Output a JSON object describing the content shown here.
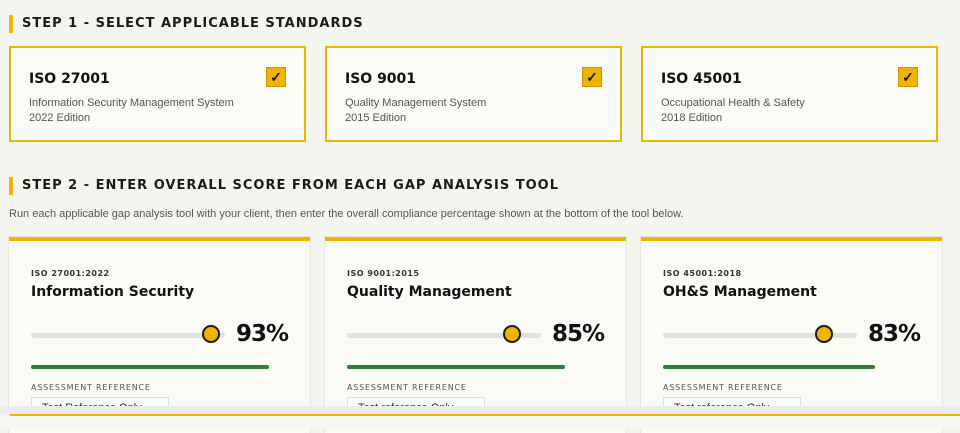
{
  "step1": {
    "title": "STEP 1 - SELECT APPLICABLE STANDARDS"
  },
  "standards": [
    {
      "code": "ISO 27001",
      "name": "Information Security Management System",
      "edition": "2022 Edition",
      "checked": true
    },
    {
      "code": "ISO 9001",
      "name": "Quality Management System",
      "edition": "2015 Edition",
      "checked": true
    },
    {
      "code": "ISO 45001",
      "name": "Occupational Health & Safety",
      "edition": "2018 Edition",
      "checked": true
    }
  ],
  "check_glyph": "✓",
  "step2": {
    "title": "STEP 2 - ENTER OVERALL SCORE FROM EACH GAP ANALYSIS TOOL",
    "description": "Run each applicable gap analysis tool with your client, then enter the overall compliance percentage shown at the bottom of the tool below."
  },
  "scores": [
    {
      "tag": "ISO 27001:2022",
      "title": "Information Security",
      "value": 93,
      "value_label": "93%",
      "ref_label": "ASSESSMENT REFERENCE",
      "ref_value": "Test Reference Only"
    },
    {
      "tag": "ISO 9001:2015",
      "title": "Quality Management",
      "value": 85,
      "value_label": "85%",
      "ref_label": "ASSESSMENT REFERENCE",
      "ref_value": "Test reference Only"
    },
    {
      "tag": "ISO 45001:2018",
      "title": "OH&S Management",
      "value": 83,
      "value_label": "83%",
      "ref_label": "ASSESSMENT REFERENCE",
      "ref_value": "Test reference Only"
    }
  ],
  "colors": {
    "accent": "#f0b400",
    "progress": "#2e7d32",
    "background": "#f5f5f0"
  },
  "icons": {
    "checkbox": "checkmark-icon",
    "slider": "slider-thumb"
  }
}
